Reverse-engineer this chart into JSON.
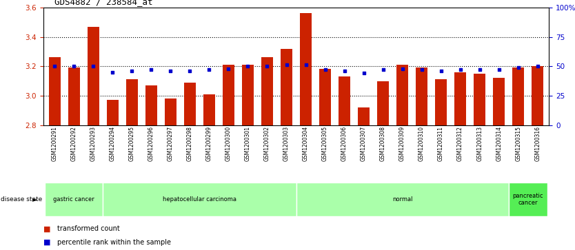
{
  "title": "GDS4882 / 238584_at",
  "samples": [
    "GSM1200291",
    "GSM1200292",
    "GSM1200293",
    "GSM1200294",
    "GSM1200295",
    "GSM1200296",
    "GSM1200297",
    "GSM1200298",
    "GSM1200299",
    "GSM1200300",
    "GSM1200301",
    "GSM1200302",
    "GSM1200303",
    "GSM1200304",
    "GSM1200305",
    "GSM1200306",
    "GSM1200307",
    "GSM1200308",
    "GSM1200309",
    "GSM1200310",
    "GSM1200311",
    "GSM1200312",
    "GSM1200313",
    "GSM1200314",
    "GSM1200315",
    "GSM1200316"
  ],
  "transformed_count": [
    3.26,
    3.19,
    3.47,
    2.97,
    3.11,
    3.07,
    2.98,
    3.09,
    3.01,
    3.21,
    3.21,
    3.26,
    3.32,
    3.56,
    3.18,
    3.13,
    2.92,
    3.1,
    3.21,
    3.19,
    3.11,
    3.16,
    3.15,
    3.12,
    3.19,
    3.2
  ],
  "percentile_rank": [
    50,
    50,
    50,
    45,
    46,
    47,
    46,
    46,
    47,
    48,
    50,
    50,
    51,
    51,
    47,
    46,
    44,
    47,
    48,
    47,
    46,
    47,
    47,
    47,
    49,
    50
  ],
  "ylim_left": [
    2.8,
    3.6
  ],
  "ylim_right": [
    0,
    100
  ],
  "bar_color": "#cc2200",
  "dot_color": "#0000cc",
  "background_color": "#ffffff",
  "label_color_left": "#cc2200",
  "label_color_right": "#0000cc",
  "yticks_left": [
    2.8,
    3.0,
    3.2,
    3.4,
    3.6
  ],
  "yticks_right": [
    0,
    25,
    50,
    75,
    100
  ],
  "ytick_labels_right": [
    "0",
    "25",
    "50",
    "75",
    "100%"
  ],
  "grid_yticks": [
    3.0,
    3.2,
    3.4
  ],
  "disease_groups": [
    {
      "label": "gastric cancer",
      "start": 0,
      "end": 2,
      "color": "#aaffaa"
    },
    {
      "label": "hepatocellular carcinoma",
      "start": 3,
      "end": 12,
      "color": "#aaffaa"
    },
    {
      "label": "normal",
      "start": 13,
      "end": 23,
      "color": "#aaffaa"
    },
    {
      "label": "pancreatic\ncancer",
      "start": 24,
      "end": 25,
      "color": "#55ee55"
    }
  ],
  "xtick_bg_color": "#cccccc",
  "disease_bg_color": "#aaffaa",
  "bar_width": 0.6
}
